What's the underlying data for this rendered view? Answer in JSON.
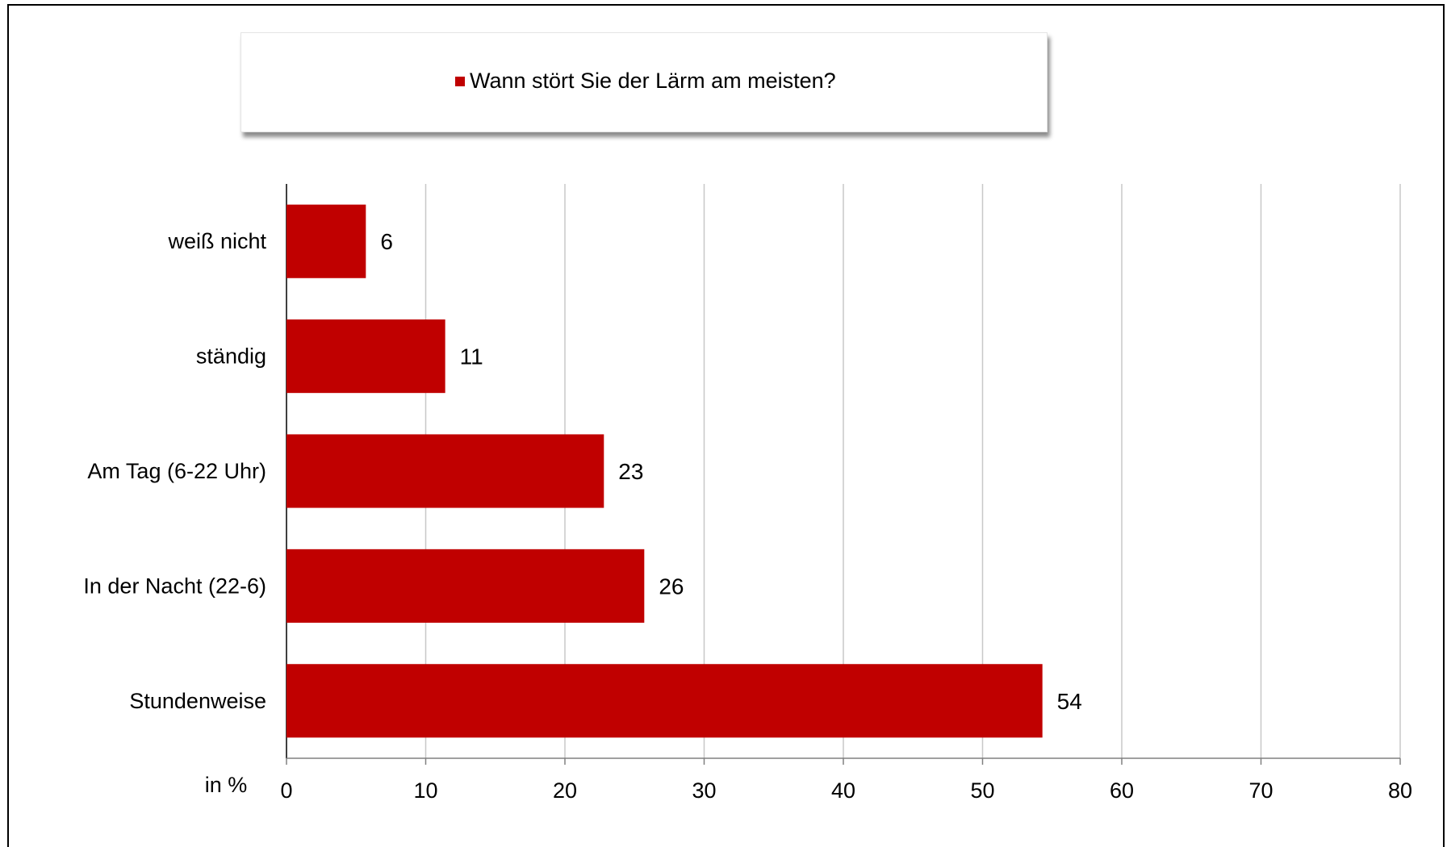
{
  "chart_data": {
    "type": "bar",
    "orientation": "horizontal",
    "categories": [
      "weiß nicht",
      "ständig",
      "Am Tag (6-22 Uhr)",
      "In der Nacht (22-6)",
      "Stundenweise"
    ],
    "series": [
      {
        "name": "Wann stört Sie der Lärm am meisten?",
        "values": [
          6,
          11,
          23,
          26,
          54
        ]
      }
    ],
    "value_labels": [
      5.7,
      11.4,
      22.8,
      25.7,
      54.3
    ],
    "xlabel": "in %",
    "xlim": [
      0,
      80
    ],
    "xticks": [
      0,
      10,
      20,
      30,
      40,
      50,
      60,
      70,
      80
    ],
    "grid": "vertical",
    "legend": "top",
    "bar_color": "#c00000"
  }
}
